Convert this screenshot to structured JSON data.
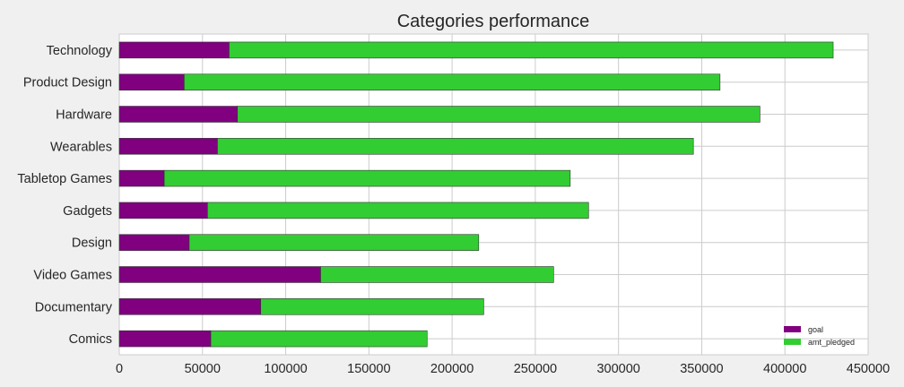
{
  "chart_data": {
    "type": "bar",
    "orientation": "horizontal",
    "stacked": true,
    "title": "Categories performance",
    "xlabel": "",
    "ylabel": "",
    "categories": [
      "Technology",
      "Product Design",
      "Hardware",
      "Wearables",
      "Tabletop Games",
      "Gadgets",
      "Design",
      "Video Games",
      "Documentary",
      "Comics"
    ],
    "series": [
      {
        "name": "goal",
        "color": "#800080",
        "values": [
          66000,
          39000,
          71000,
          59000,
          27000,
          53000,
          42000,
          121000,
          85000,
          55000
        ]
      },
      {
        "name": "amt_pledged",
        "color": "#32cd32",
        "values": [
          363000,
          322000,
          314000,
          286000,
          244000,
          229000,
          174000,
          140000,
          134000,
          130000
        ]
      }
    ],
    "xlim": [
      0,
      450000
    ],
    "xticks": [
      "0",
      "50000",
      "100000",
      "150000",
      "200000",
      "250000",
      "300000",
      "350000",
      "400000",
      "450000"
    ],
    "grid": true,
    "legend_position": "lower-right"
  }
}
